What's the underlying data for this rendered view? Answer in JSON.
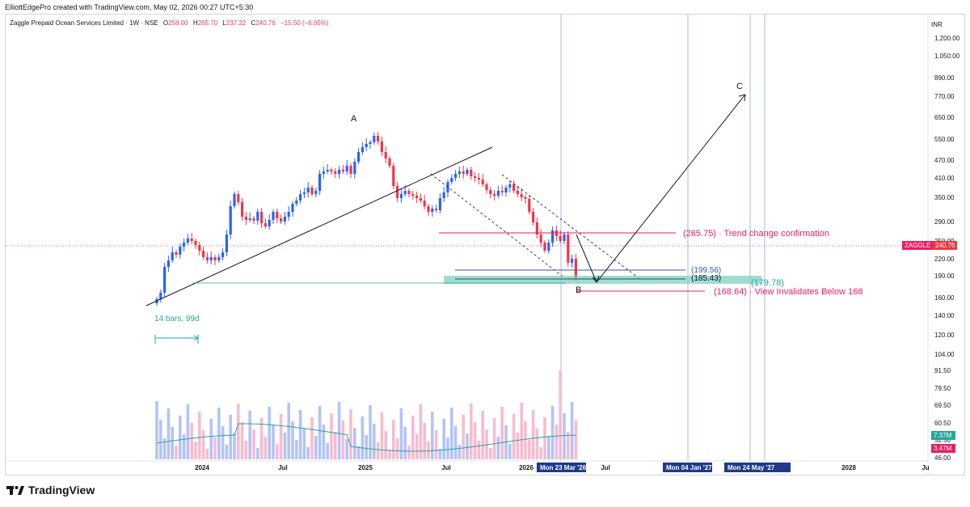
{
  "header": {
    "text": "ElliottEdgePro created with TradingView.com, May 02, 2026 00:27 UTC+5:30"
  },
  "legend": {
    "symbol": "Zaggle Prepaid Ocean Services Limited · 1W · NSE",
    "open_label": "O",
    "open": "258.00",
    "high_label": "H",
    "high": "265.70",
    "low_label": "L",
    "low": "237.22",
    "close_label": "C",
    "close": "240.76",
    "change": "−15.50 (−6.05%)"
  },
  "currency": "INR",
  "price_axis": {
    "ticks": [
      "1,200.00",
      "1,050.00",
      "890.00",
      "770.00",
      "650.00",
      "550.00",
      "470.00",
      "410.00",
      "350.00",
      "290.00",
      "250.00",
      "220.00",
      "190.00",
      "160.00",
      "140.00",
      "120.00",
      "104.00",
      "91.50",
      "79.50",
      "69.50",
      "60.50",
      "52.50",
      "46.00"
    ],
    "current_symbol": "ZAGGLE",
    "current_price": "240.76",
    "volume_badge_1": "7.37M",
    "volume_badge_2": "3.47M"
  },
  "time_axis": {
    "ticks": [
      "2024",
      "Jul",
      "2025",
      "Jul",
      "2026",
      "Jul",
      "'27",
      "2028",
      "Ju"
    ],
    "highlighted": [
      "Mon 23 Mar '26",
      "Mon 04 Jan '27",
      "Mon 24 May '27"
    ]
  },
  "annotations": {
    "wave_a": "A",
    "wave_b": "B",
    "wave_c": "C",
    "trend_confirm": "(265.75) · Trend change confirmation",
    "level_1": "(199.56)",
    "level_2": "(185.43)",
    "level_3": "(179.78)",
    "invalidation": "(168.64) · View Invalidates Below 168",
    "range_label": "14 bars, 99d"
  },
  "footer": {
    "brand": "TradingView"
  },
  "colors": {
    "up": "#2962ff",
    "down": "#f23645",
    "accent_pink": "#e91e63",
    "teal": "#26a69a",
    "vol_up": "#b2c4f8",
    "vol_down": "#f8bbd0"
  },
  "chart_data": {
    "type": "candlestick",
    "interval": "1W",
    "ohlc_latest": {
      "open": 258.0,
      "high": 265.7,
      "low": 237.22,
      "close": 240.76
    },
    "price_levels": [
      265.75,
      199.56,
      185.43,
      179.78,
      168.64
    ],
    "y_scale": "log"
  }
}
